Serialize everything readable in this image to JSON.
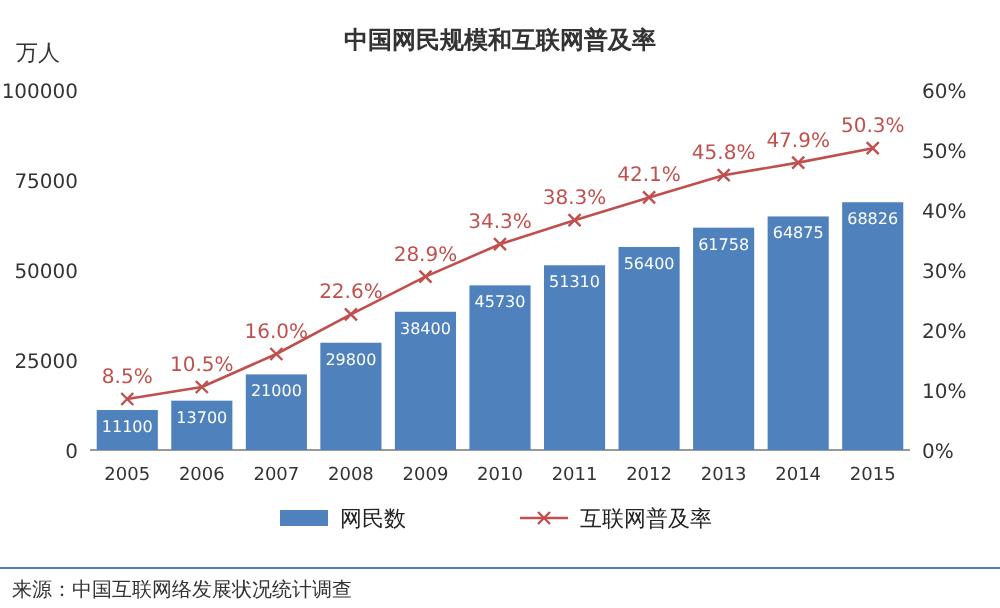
{
  "chart_data": {
    "type": "bar",
    "title": "中国网民规模和互联网普及率",
    "ylabel": "万人",
    "categories": [
      "2005",
      "2006",
      "2007",
      "2008",
      "2009",
      "2010",
      "2011",
      "2012",
      "2013",
      "2014",
      "2015"
    ],
    "series": [
      {
        "name": "网民数",
        "color": "#4f81bd",
        "values": [
          11100,
          13700,
          21000,
          29800,
          38400,
          45730,
          51310,
          56400,
          61758,
          64875,
          68826
        ],
        "value_labels": [
          "11100",
          "13700",
          "21000",
          "29800",
          "38400",
          "45730",
          "51310",
          "56400",
          "61758",
          "64875",
          "68826"
        ]
      },
      {
        "name": "互联网普及率",
        "type": "line",
        "axis": "y2",
        "color": "#c0504d",
        "marker": "cross",
        "line_style": "solid",
        "values": [
          8.5,
          10.5,
          16.0,
          22.6,
          28.9,
          34.3,
          38.3,
          42.1,
          45.8,
          47.9,
          50.3
        ],
        "value_labels": [
          "8.5%",
          "10.5%",
          "16.0%",
          "22.6%",
          "28.9%",
          "34.3%",
          "38.3%",
          "42.1%",
          "45.8%",
          "47.9%",
          "50.3%"
        ]
      }
    ],
    "ylim": [
      0,
      100000
    ],
    "yticks": [
      0,
      25000,
      50000,
      75000,
      100000
    ],
    "y2lim": [
      0,
      60
    ],
    "y2ticks": [
      {
        "value": 0,
        "label": "0%"
      },
      {
        "value": 10,
        "label": "10%"
      },
      {
        "value": 20,
        "label": "20%"
      },
      {
        "value": 30,
        "label": "30%"
      },
      {
        "value": 40,
        "label": "40%"
      },
      {
        "value": 50,
        "label": "50%"
      },
      {
        "value": 60,
        "label": "60%"
      }
    ],
    "legend": "bottom",
    "grid": false,
    "annotations": [
      "来源：中国互联网络发展状况统计调查"
    ]
  }
}
